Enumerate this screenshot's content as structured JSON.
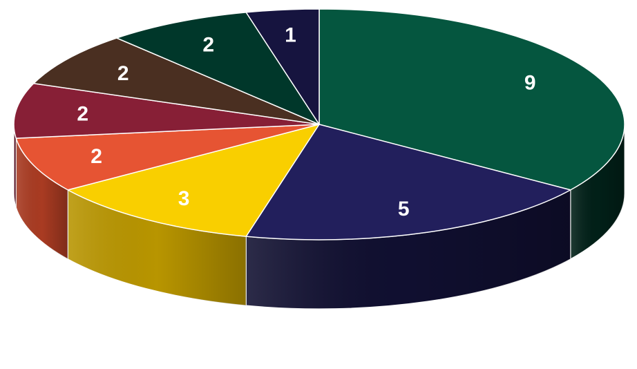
{
  "chart_data": {
    "type": "pie",
    "title": "",
    "values": [
      9,
      5,
      3,
      2,
      2,
      2,
      2,
      1
    ],
    "labels": [
      "9",
      "5",
      "3",
      "2",
      "2",
      "2",
      "2",
      "1"
    ],
    "colors": [
      "#05563F",
      "#221F5C",
      "#F9CF00",
      "#E65433",
      "#871F36",
      "#4A2F21",
      "#00372A",
      "#16143F"
    ],
    "side_colors": [
      "#012018",
      "#100F30",
      "#B89500",
      "#A93B22",
      "#5A1022",
      "#2E1C13",
      "#00241B",
      "#0A0926"
    ],
    "start_angle_deg": 90,
    "direction": "clockwise",
    "style": "3d",
    "legend": "none"
  }
}
